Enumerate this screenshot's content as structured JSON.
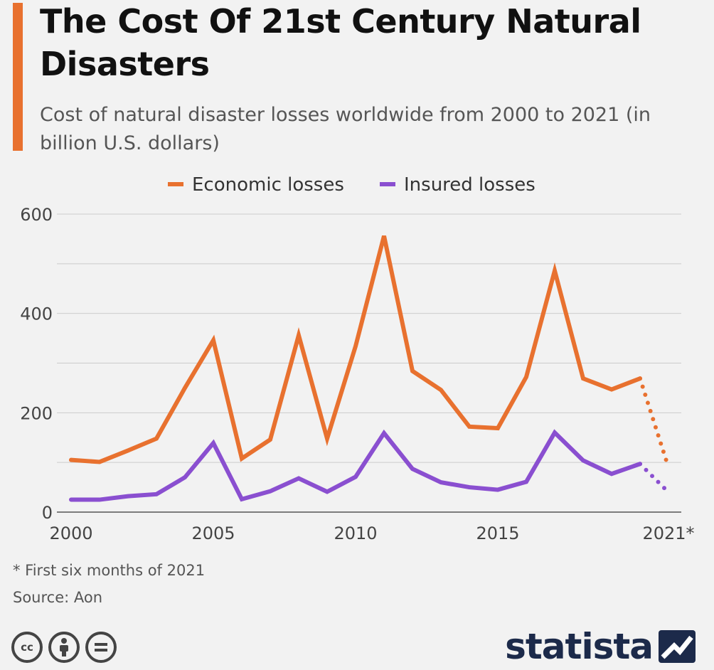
{
  "title": "The Cost Of 21st Century Natural Disasters",
  "subtitle": "Cost of natural disaster losses worldwide from 2000 to 2021 (in billion U.S. dollars)",
  "footnote": "* First six months of 2021",
  "source": "Source: Aon",
  "brand": "statista",
  "colors": {
    "accent": "#e8712f",
    "economic": "#e8712f",
    "insured": "#8a4fd0",
    "grid": "#cccccc"
  },
  "icons": [
    "creative-commons-icon",
    "attribution-icon",
    "no-derivatives-icon"
  ],
  "chart_data": {
    "type": "line",
    "x": [
      2000,
      2001,
      2002,
      2003,
      2004,
      2005,
      2006,
      2007,
      2008,
      2009,
      2010,
      2011,
      2012,
      2013,
      2014,
      2015,
      2016,
      2017,
      2018,
      2019,
      2020,
      2021
    ],
    "x_tick_labels": [
      "2000",
      "2005",
      "2010",
      "2015",
      "2021*"
    ],
    "x_tick_values": [
      2000,
      2005,
      2010,
      2015,
      2021
    ],
    "y_ticks": [
      0,
      200,
      400,
      600
    ],
    "ylim": [
      0,
      600
    ],
    "grid": true,
    "legend": "top",
    "note": "2021 values are first six months (dotted)",
    "series": [
      {
        "name": "Economic losses",
        "color": "#e8712f",
        "values": [
          105,
          101,
          124,
          148,
          250,
          346,
          108,
          146,
          356,
          148,
          334,
          556,
          284,
          246,
          172,
          169,
          272,
          486,
          269,
          247,
          269,
          90
        ]
      },
      {
        "name": "Insured losses",
        "color": "#8a4fd0",
        "values": [
          25,
          25,
          32,
          36,
          70,
          139,
          26,
          42,
          68,
          41,
          71,
          159,
          87,
          60,
          50,
          45,
          61,
          160,
          104,
          77,
          97,
          40
        ]
      }
    ]
  }
}
